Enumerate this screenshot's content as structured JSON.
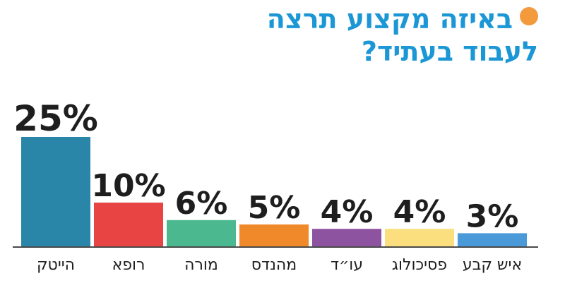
{
  "title_line1": "באיזה מקצוע תרצה",
  "title_line2": "לעבוד בעתיד?",
  "accent_dot_color": "#f39a3c",
  "chart_data": {
    "type": "bar",
    "title": "באיזה מקצוע תרצה לעבוד בעתיד?",
    "categories": [
      "הייטק",
      "רופא",
      "מורה",
      "מהנדס",
      "עו״ד",
      "פסיכולוג",
      "איש קבע"
    ],
    "values": [
      25,
      10,
      6,
      5,
      4,
      4,
      3
    ],
    "value_labels": [
      "25%",
      "10%",
      "6%",
      "5%",
      "4%",
      "4%",
      "3%"
    ],
    "colors": [
      "#2a86a9",
      "#e84443",
      "#4cb890",
      "#f0892a",
      "#8e53a0",
      "#fbdf7e",
      "#4a99d8"
    ],
    "ylim": [
      0,
      25
    ],
    "grid": false,
    "legend": "none"
  }
}
